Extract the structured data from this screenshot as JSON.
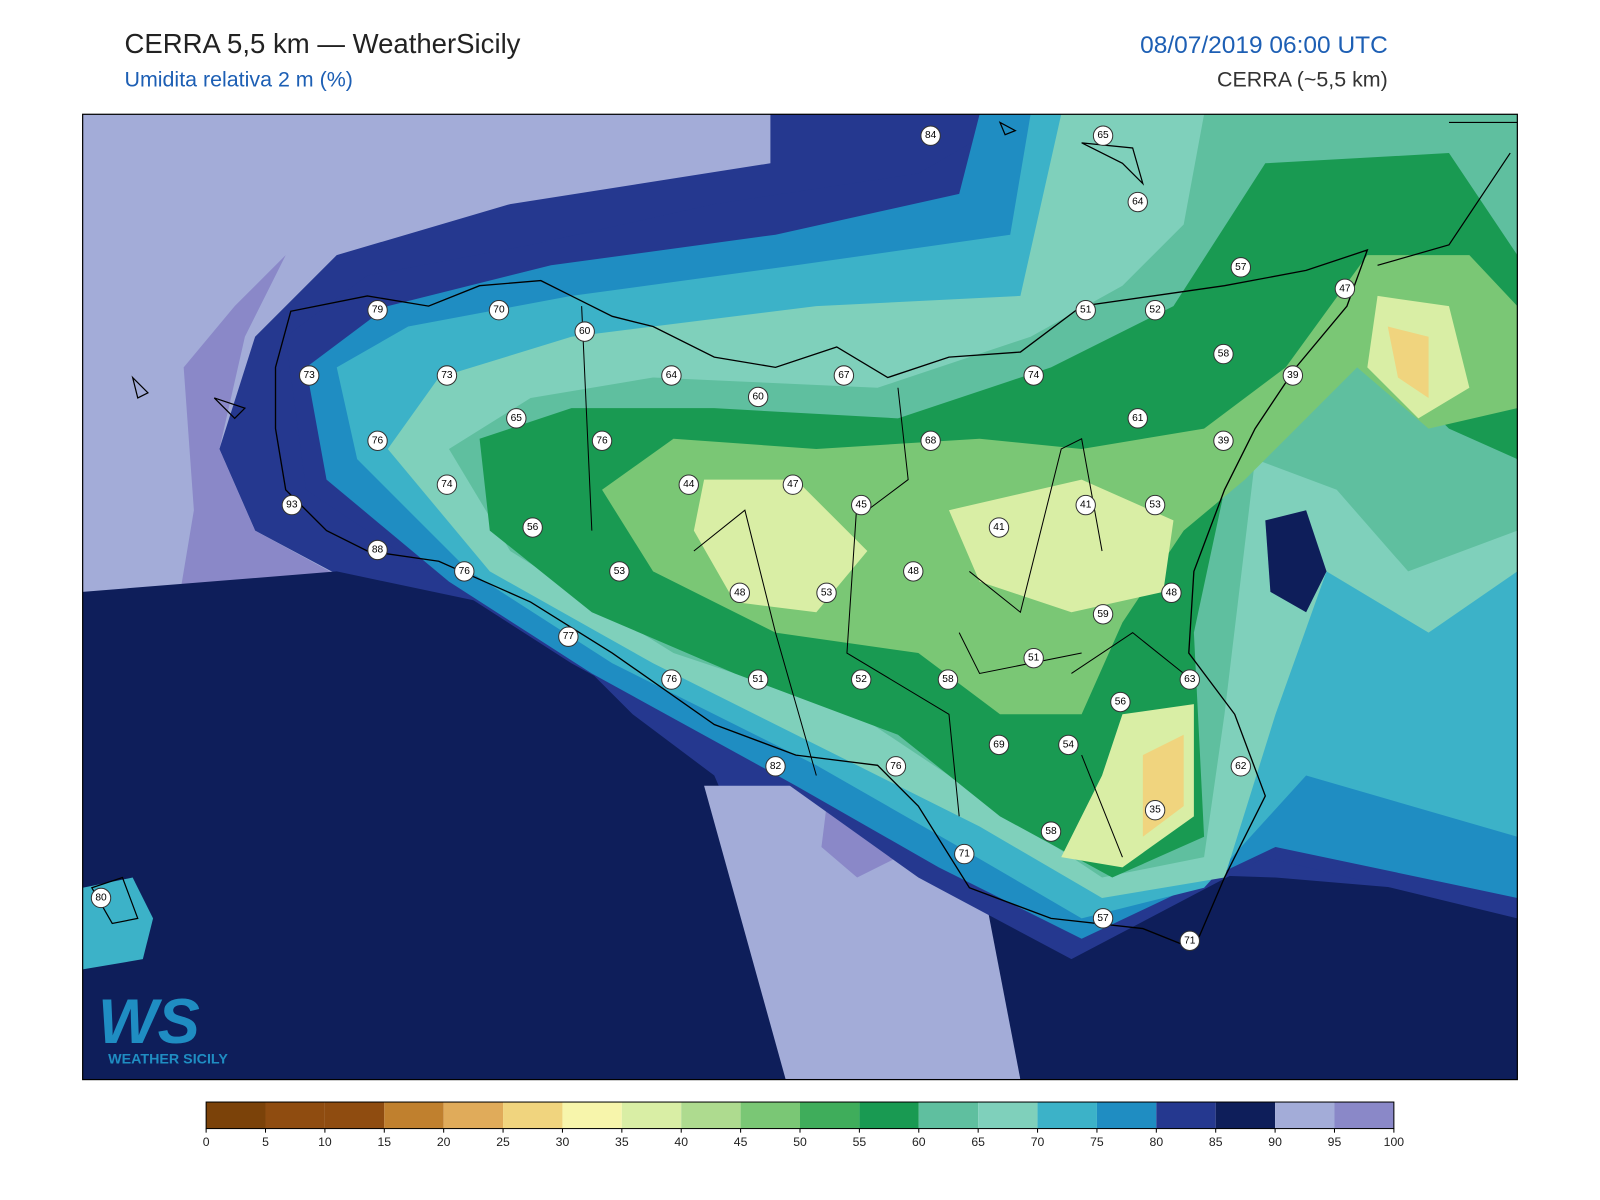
{
  "header": {
    "title": "CERRA 5,5 km — WeatherSicily",
    "subtitle": "Umidita relativa 2 m (%)",
    "datetime": "08/07/2019 06:00 UTC",
    "model": "CERRA (~5,5 km)"
  },
  "logo": {
    "mark": "WS",
    "text": "WEATHER SICILY"
  },
  "stations": [
    84,
    65,
    64,
    57,
    47,
    79,
    70,
    60,
    51,
    52,
    58,
    73,
    73,
    64,
    67,
    74,
    39,
    60,
    65,
    61,
    76,
    76,
    68,
    39,
    74,
    44,
    47,
    45,
    41,
    53,
    93,
    56,
    41,
    88,
    76,
    53,
    48,
    48,
    53,
    48,
    59,
    77,
    51,
    76,
    51,
    52,
    58,
    63,
    56,
    69,
    54,
    82,
    76,
    62,
    35,
    58,
    71,
    80,
    57,
    71
  ],
  "colorbar": {
    "ticks": [
      0,
      5,
      10,
      15,
      20,
      25,
      30,
      35,
      40,
      45,
      50,
      55,
      60,
      65,
      70,
      75,
      80,
      85,
      90,
      95,
      100
    ],
    "colors": [
      "#7b4209",
      "#8f4c10",
      "#8f4c10",
      "#c0802e",
      "#e0ab5a",
      "#f0d47e",
      "#f7f5ab",
      "#d9eea5",
      "#aedb8f",
      "#7ac775",
      "#3fad5b",
      "#199a52",
      "#5fbf9f",
      "#7fd0bb",
      "#3cb2c8",
      "#1f8dc2",
      "#25388f",
      "#0e1e5a",
      "#a3acd8",
      "#8a88c8"
    ]
  }
}
